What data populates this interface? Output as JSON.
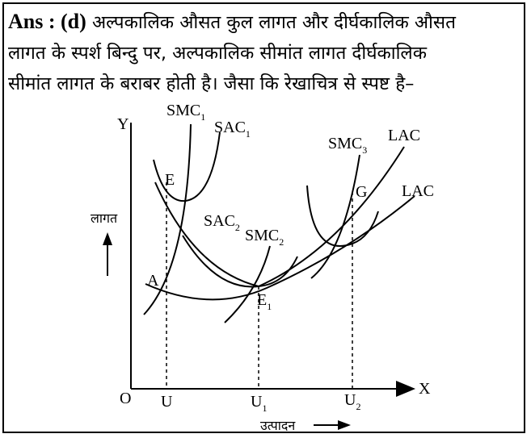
{
  "answer": {
    "label": "Ans : (d)",
    "line1": " अल्पकालिक औसत कुल लागत और दीर्घकालिक औसत",
    "line2": "लागत के स्पर्श बिन्दु पर, अल्पकालिक सीमांत लागत दीर्घकालिक",
    "line3": "सीमांत लागत के बराबर होती है। जैसा कि रेखाचित्र से स्पष्ट है–"
  },
  "diagram": {
    "y_axis": "Y",
    "x_axis": "X",
    "origin": "O",
    "y_label": "लागत",
    "x_label": "उत्पादन",
    "curves": {
      "smc1": {
        "name": "SMC",
        "sub": "1"
      },
      "sac1": {
        "name": "SAC",
        "sub": "1"
      },
      "sac2": {
        "name": "SAC",
        "sub": "2"
      },
      "smc2": {
        "name": "SMC",
        "sub": "2"
      },
      "smc3": {
        "name": "SMC",
        "sub": "3"
      },
      "lac_upper": "LAC",
      "lac_lower": "LAC"
    },
    "points": {
      "e": "E",
      "a": "A",
      "e1": {
        "name": "E",
        "sub": "1"
      },
      "g": "G"
    },
    "ticks": {
      "u": "U",
      "u1": {
        "name": "U",
        "sub": "1"
      },
      "u2": {
        "name": "U",
        "sub": "2"
      }
    }
  }
}
